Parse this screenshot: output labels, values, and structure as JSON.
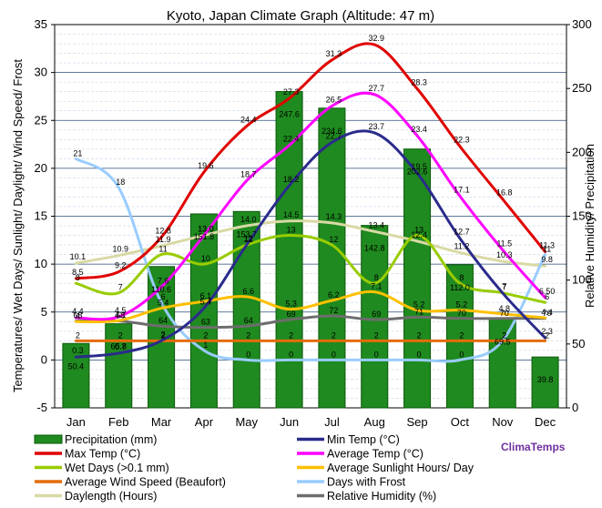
{
  "chart_data": {
    "type": "bar+line",
    "title": "Kyoto, Japan Climate Graph (Altitude: 47 m)",
    "ylabel_left": "Temperatures/ Wet Days/ Sunlight/ Daylight/ Wind Speed/ Frost",
    "ylabel_right": "Relative Humidity/ Precipitation",
    "left_axis": {
      "min": -5,
      "max": 35,
      "ticks": [
        -5,
        0,
        5,
        10,
        15,
        20,
        25,
        30,
        35
      ]
    },
    "right_axis": {
      "min": 0,
      "max": 300,
      "ticks": [
        0,
        50,
        100,
        150,
        200,
        250,
        300
      ]
    },
    "categories": [
      "Jan",
      "Feb",
      "Mar",
      "Apr",
      "May",
      "Jun",
      "Jul",
      "Aug",
      "Sep",
      "Oct",
      "Nov",
      "Dec"
    ],
    "precipitation": {
      "name": "Precipitation (mm)",
      "color": "#1f8a1f",
      "values": [
        50.4,
        65.8,
        110.6,
        151.8,
        153.7,
        247.6,
        234.6,
        142.8,
        202.6,
        112.0,
        69.5,
        39.8
      ],
      "labels": [
        "50.4",
        "65.8",
        "110.6",
        "151.8",
        "153.7",
        "247.6",
        "234.6",
        "142.8",
        "202.6",
        "112.0",
        "69.5",
        "39.8"
      ]
    },
    "series": [
      {
        "name": "Max Temp (°C)",
        "color": "#e00000",
        "axis": "left",
        "values": [
          8.5,
          9.2,
          12.8,
          19.6,
          24.4,
          27.3,
          31.3,
          32.9,
          28.3,
          22.3,
          16.8,
          11.3
        ],
        "labels": [
          "8.5",
          "9.2",
          "12.8",
          "19.6",
          "24.4",
          "27.3",
          "31.3",
          "32.9",
          "28.3",
          "22.3",
          "16.8",
          "11.3"
        ]
      },
      {
        "name": "Min Temp (°C)",
        "color": "#2b2b8c",
        "axis": "left",
        "values": [
          0.3,
          0.7,
          2.0,
          5.4,
          12.0,
          18.2,
          22.7,
          23.7,
          19.5,
          12.7,
          7.0,
          2.3
        ],
        "labels": [
          "0.3",
          "0.7",
          "2",
          "5.4",
          "12",
          "18.2",
          "22.7",
          "23.7",
          "19.5",
          "12.7",
          "7",
          "2.3"
        ]
      },
      {
        "name": "Average Temp (°C)",
        "color": "#ff00ff",
        "axis": "left",
        "values": [
          4.4,
          4.5,
          7.6,
          13.0,
          18.7,
          22.4,
          26.5,
          27.7,
          23.4,
          17.1,
          11.5,
          6.5
        ],
        "labels": [
          "4.4",
          "4.5",
          "7.6",
          "13.0",
          "18.7",
          "22.4",
          "26.5",
          "27.7",
          "23.4",
          "17.1",
          "11.5",
          "6.50"
        ]
      },
      {
        "name": "Wet Days (>0.1 mm)",
        "color": "#99cc00",
        "axis": "left",
        "values": [
          8,
          7,
          11,
          10,
          12,
          13,
          12,
          8,
          13,
          8,
          7,
          6
        ],
        "labels": [
          "8",
          "7",
          "11",
          "10",
          "12",
          "13",
          "12",
          "8",
          "13",
          "8",
          "7",
          "6"
        ]
      },
      {
        "name": "Average Sunlight Hours/ Day",
        "color": "#ffc000",
        "axis": "left",
        "values": [
          4.0,
          4.1,
          5.4,
          6.1,
          6.6,
          5.3,
          6.2,
          7.1,
          5.2,
          5.2,
          4.8,
          4.4
        ],
        "labels": [
          "4",
          "4.1",
          "5.4",
          "6.1",
          "6.6",
          "5.3",
          "6.2",
          "7.1",
          "5.2",
          "5.2",
          "4.8",
          "4.4"
        ]
      },
      {
        "name": "Average Wind Speed (Beaufort)",
        "color": "#e46c0a",
        "axis": "left",
        "values": [
          2,
          2,
          2,
          2,
          2,
          2,
          2,
          2,
          2,
          2,
          2,
          2
        ],
        "labels": [
          "2",
          "2",
          "2",
          "2",
          "2",
          "2",
          "2",
          "2",
          "2",
          "2",
          "2",
          "2"
        ]
      },
      {
        "name": "Days with Frost",
        "color": "#99ccff",
        "axis": "left",
        "values": [
          21,
          18,
          6,
          1,
          0,
          0,
          0,
          0,
          0,
          0,
          2,
          11
        ],
        "labels": [
          "21",
          "18",
          "6",
          "1",
          "0",
          "0",
          "0",
          "0",
          "0",
          "0",
          "2",
          "11"
        ]
      },
      {
        "name": "Daylength (Hours)",
        "color": "#d9d9a6",
        "axis": "left",
        "values": [
          10.1,
          10.9,
          11.9,
          13.0,
          14.0,
          14.5,
          14.3,
          13.4,
          12.4,
          11.2,
          10.3,
          9.8
        ],
        "labels": [
          "10.1",
          "10.9",
          "11.9",
          "13.0",
          "14.0",
          "14.5",
          "14.3",
          "13.4",
          "12.4",
          "11.2",
          "10.3",
          "9.8"
        ]
      },
      {
        "name": "Relative Humidity (%)",
        "color": "#6d6d6d",
        "axis": "right",
        "values": [
          68,
          68,
          64,
          63,
          64,
          69,
          72,
          69,
          71,
          70,
          70,
          70
        ],
        "labels": [
          "68",
          "68",
          "64",
          "63",
          "64",
          "69",
          "72",
          "69",
          "71",
          "70",
          "70",
          "70"
        ]
      }
    ],
    "legend": {
      "placement": "bottom",
      "items": [
        {
          "name": "Precipitation (mm)",
          "color": "#1f8a1f",
          "kind": "bar"
        },
        {
          "name": "Min Temp (°C)",
          "color": "#2b2b8c",
          "kind": "line"
        },
        {
          "name": "Max Temp (°C)",
          "color": "#e00000",
          "kind": "line"
        },
        {
          "name": "Average Temp (°C)",
          "color": "#ff00ff",
          "kind": "line"
        },
        {
          "name": "Wet Days (>0.1 mm)",
          "color": "#99cc00",
          "kind": "line"
        },
        {
          "name": "Average Sunlight Hours/ Day",
          "color": "#ffc000",
          "kind": "line"
        },
        {
          "name": "Average Wind Speed (Beaufort)",
          "color": "#e46c0a",
          "kind": "line"
        },
        {
          "name": "Days with Frost",
          "color": "#99ccff",
          "kind": "line"
        },
        {
          "name": "Daylength (Hours)",
          "color": "#d9d9a6",
          "kind": "line"
        },
        {
          "name": "Relative Humidity (%)",
          "color": "#6d6d6d",
          "kind": "line"
        }
      ]
    },
    "brand": "ClimaTemps",
    "grid": true
  }
}
